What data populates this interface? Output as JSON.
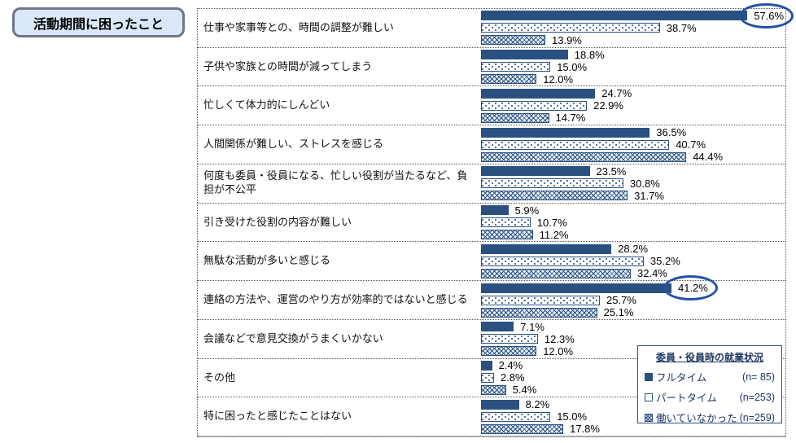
{
  "title": "活動期間に困ったこと",
  "legend": {
    "title": "委員・役員時の就業状況",
    "entries": [
      {
        "marker": "solid-square",
        "label": "フルタイム",
        "n": "(n= 85)"
      },
      {
        "marker": "open-square",
        "label": "パートタイム",
        "n": "(n=253)"
      },
      {
        "marker": "hatched-square",
        "label": "働いていなかった",
        "n": "(n=259)"
      }
    ]
  },
  "chart_data": {
    "type": "bar",
    "orientation": "horizontal",
    "title": "活動期間に困ったこと",
    "value_unit": "%",
    "xlim": [
      0,
      65
    ],
    "grid": false,
    "legend_position": "bottom-right-inside",
    "categories": [
      "仕事や家事等との、時間の調整が難しい",
      "子供や家族との時間が減ってしまう",
      "忙しくて体力的にしんどい",
      "人間関係が難しい、ストレスを感じる",
      "何度も委員・役員になる、忙しい役割が当たるなど、負担が不公平",
      "引き受けた役割の内容が難しい",
      "無駄な活動が多いと感じる",
      "連絡の方法や、運営のやり方が効率的ではないと感じる",
      "会議などで意見交換がうまくいかない",
      "その他",
      "特に困ったと感じたことはない"
    ],
    "series": [
      {
        "name": "フルタイム",
        "n": 85,
        "pattern": "solid",
        "values": [
          57.6,
          18.8,
          24.7,
          36.5,
          23.5,
          5.9,
          28.2,
          41.2,
          7.1,
          2.4,
          8.2
        ]
      },
      {
        "name": "パートタイム",
        "n": 253,
        "pattern": "dotted",
        "values": [
          38.7,
          15.0,
          22.9,
          40.7,
          30.8,
          10.7,
          35.2,
          25.7,
          12.3,
          2.8,
          15.0
        ]
      },
      {
        "name": "働いていなかった",
        "n": 259,
        "pattern": "crosshatch",
        "values": [
          13.9,
          12.0,
          14.7,
          44.4,
          31.7,
          11.2,
          32.4,
          25.1,
          12.0,
          5.4,
          17.8
        ]
      }
    ],
    "annotations": [
      {
        "type": "ellipse-highlight",
        "row_index": 0,
        "series_index": 0,
        "value": 57.6
      },
      {
        "type": "ellipse-highlight",
        "row_index": 7,
        "series_index": 0,
        "value": 41.2
      }
    ],
    "colors": {
      "bar_navy": "#2A5080",
      "annotation_blue": "#2450A8",
      "title_box_fill": "#D9E7F8",
      "title_box_border": "#6e7787",
      "legend_text": "#1F3864"
    }
  }
}
